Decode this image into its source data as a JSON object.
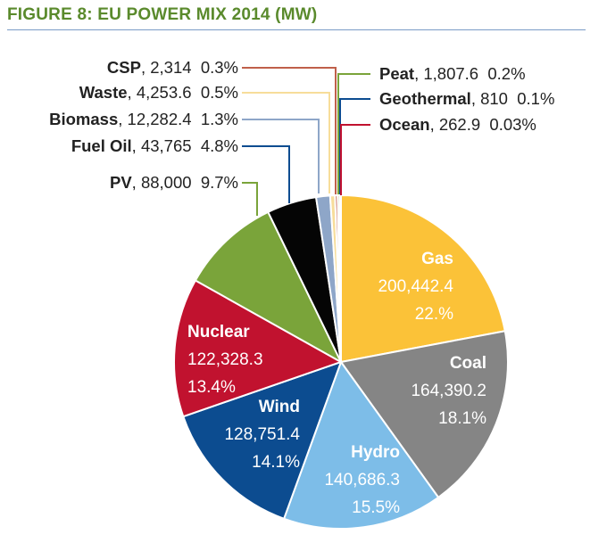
{
  "figure": {
    "title": "FIGURE 8: EU POWER MIX 2014 (MW)"
  },
  "chart_data": {
    "type": "pie",
    "title": "FIGURE 8: EU POWER MIX 2014 (MW)",
    "slices": [
      {
        "name": "Gas",
        "value": 200442.4,
        "value_label": "200,442.4",
        "pct": "22.%",
        "color": "#fbc238",
        "text_color": "#ffffff"
      },
      {
        "name": "Coal",
        "value": 164390.2,
        "value_label": "164,390.2",
        "pct": "18.1%",
        "color": "#858585",
        "text_color": "#ffffff"
      },
      {
        "name": "Hydro",
        "value": 140686.3,
        "value_label": "140,686.3",
        "pct": "15.5%",
        "color": "#7dbde8",
        "text_color": "#ffffff"
      },
      {
        "name": "Wind",
        "value": 128751.4,
        "value_label": "128,751.4",
        "pct": "14.1%",
        "color": "#0c4c90",
        "text_color": "#ffffff"
      },
      {
        "name": "Nuclear",
        "value": 122328.3,
        "value_label": "122,328.3",
        "pct": "13.4%",
        "color": "#c1122f",
        "text_color": "#ffffff"
      },
      {
        "name": "PV",
        "value": 88000,
        "value_label": "88,000",
        "pct": "9.7%",
        "color": "#7aa43a",
        "text_color": "#222222"
      },
      {
        "name": "Fuel Oil",
        "value": 43765,
        "value_label": "43,765",
        "pct": "4.8%",
        "color": "#050505",
        "text_color": "#222222"
      },
      {
        "name": "Biomass",
        "value": 12282.4,
        "value_label": "12,282.4",
        "pct": "1.3%",
        "color": "#8ea6c8",
        "text_color": "#222222"
      },
      {
        "name": "Waste",
        "value": 4253.6,
        "value_label": "4,253.6",
        "pct": "0.5%",
        "color": "#f7dd9a",
        "text_color": "#222222"
      },
      {
        "name": "CSP",
        "value": 2314,
        "value_label": "2,314",
        "pct": "0.3%",
        "color": "#c0604a",
        "text_color": "#222222"
      },
      {
        "name": "Peat",
        "value": 1807.6,
        "value_label": "1,807.6",
        "pct": "0.2%",
        "color": "#7aa43a",
        "text_color": "#222222"
      },
      {
        "name": "Geothermal",
        "value": 810,
        "value_label": "810",
        "pct": "0.1%",
        "color": "#0c4c90",
        "text_color": "#222222"
      },
      {
        "name": "Ocean",
        "value": 262.9,
        "value_label": "262.9",
        "pct": "0.03%",
        "color": "#c1122f",
        "text_color": "#222222"
      }
    ],
    "legend": "none"
  }
}
